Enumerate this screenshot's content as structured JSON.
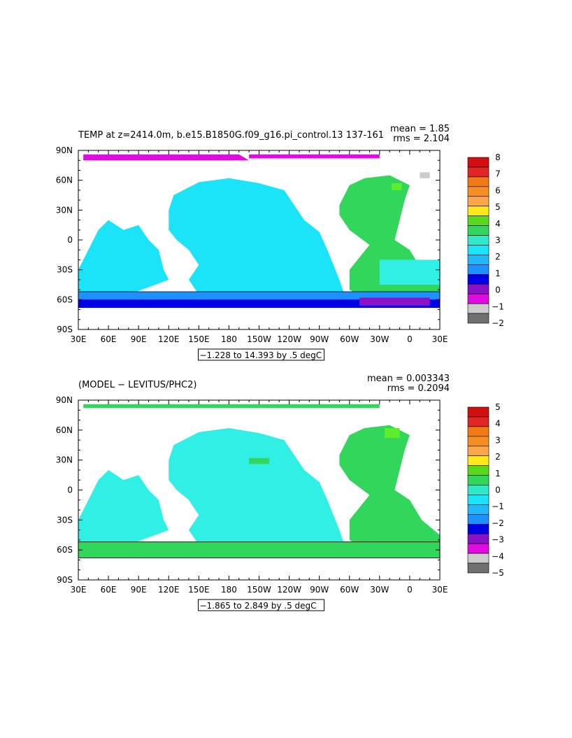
{
  "colors": {
    "ocean": "#1be3f8",
    "ocean_light": "#30f0e5",
    "blue_mid": "#1e90ff",
    "blue_dark": "#0000e6",
    "purple": "#8a12c8",
    "magenta": "#e10ae1",
    "green": "#31d65b",
    "green_light": "#5cee2c",
    "red": "#d40f0f",
    "gray": "#cccccc"
  },
  "chart_data": [
    {
      "type": "heatmap",
      "title": "TEMP at z=2414.0m, b.e15.B1850G.f09_g16.pi_control.13 137-161",
      "stats": {
        "mean": "mean = 1.85",
        "rms": "rms = 2.104"
      },
      "x_ticks": [
        "30E",
        "60E",
        "90E",
        "120E",
        "150E",
        "180",
        "150W",
        "120W",
        "90W",
        "60W",
        "30W",
        "0",
        "30E"
      ],
      "y_ticks": [
        "90N",
        "60N",
        "30N",
        "0",
        "30S",
        "60S",
        "90S"
      ],
      "xlim": [
        30,
        390
      ],
      "ylim": [
        -90,
        90
      ],
      "contour_info": "−1.228 to 14.393 by .5 degC",
      "colorbar": {
        "labels": [
          "8",
          "7",
          "6",
          "5",
          "4",
          "3",
          "2",
          "1",
          "0",
          "−1",
          "−2"
        ],
        "colors": [
          "#d20e0e",
          "#e12424",
          "#f17a14",
          "#f58f24",
          "#faa64c",
          "#ffe81c",
          "#5ad81c",
          "#31d65b",
          "#30e9c8",
          "#1be3f8",
          "#22b8f7",
          "#1e90ff",
          "#0000e6",
          "#8a12c8",
          "#e10ae1",
          "#cccccc",
          "#707070"
        ]
      }
    },
    {
      "type": "heatmap",
      "title": "(MODEL − LEVITUS/PHC2)",
      "stats": {
        "mean": "mean = 0.003343",
        "rms": "rms = 0.2094"
      },
      "x_ticks": [
        "30E",
        "60E",
        "90E",
        "120E",
        "150E",
        "180",
        "150W",
        "120W",
        "90W",
        "60W",
        "30W",
        "0",
        "30E"
      ],
      "y_ticks": [
        "90N",
        "60N",
        "30N",
        "0",
        "30S",
        "60S",
        "90S"
      ],
      "xlim": [
        30,
        390
      ],
      "ylim": [
        -90,
        90
      ],
      "contour_info": "−1.865 to 2.849 by .5 degC",
      "colorbar": {
        "labels": [
          "5",
          "4",
          "3",
          "2",
          "1",
          "0",
          "−1",
          "−2",
          "−3",
          "−4",
          "−5"
        ],
        "colors": [
          "#d20e0e",
          "#e12424",
          "#f17a14",
          "#f58f24",
          "#faa64c",
          "#ffe81c",
          "#5ad81c",
          "#31d65b",
          "#30e9c8",
          "#1be3f8",
          "#22b8f7",
          "#1e90ff",
          "#0000e6",
          "#8a12c8",
          "#e10ae1",
          "#cccccc",
          "#707070"
        ]
      }
    }
  ]
}
